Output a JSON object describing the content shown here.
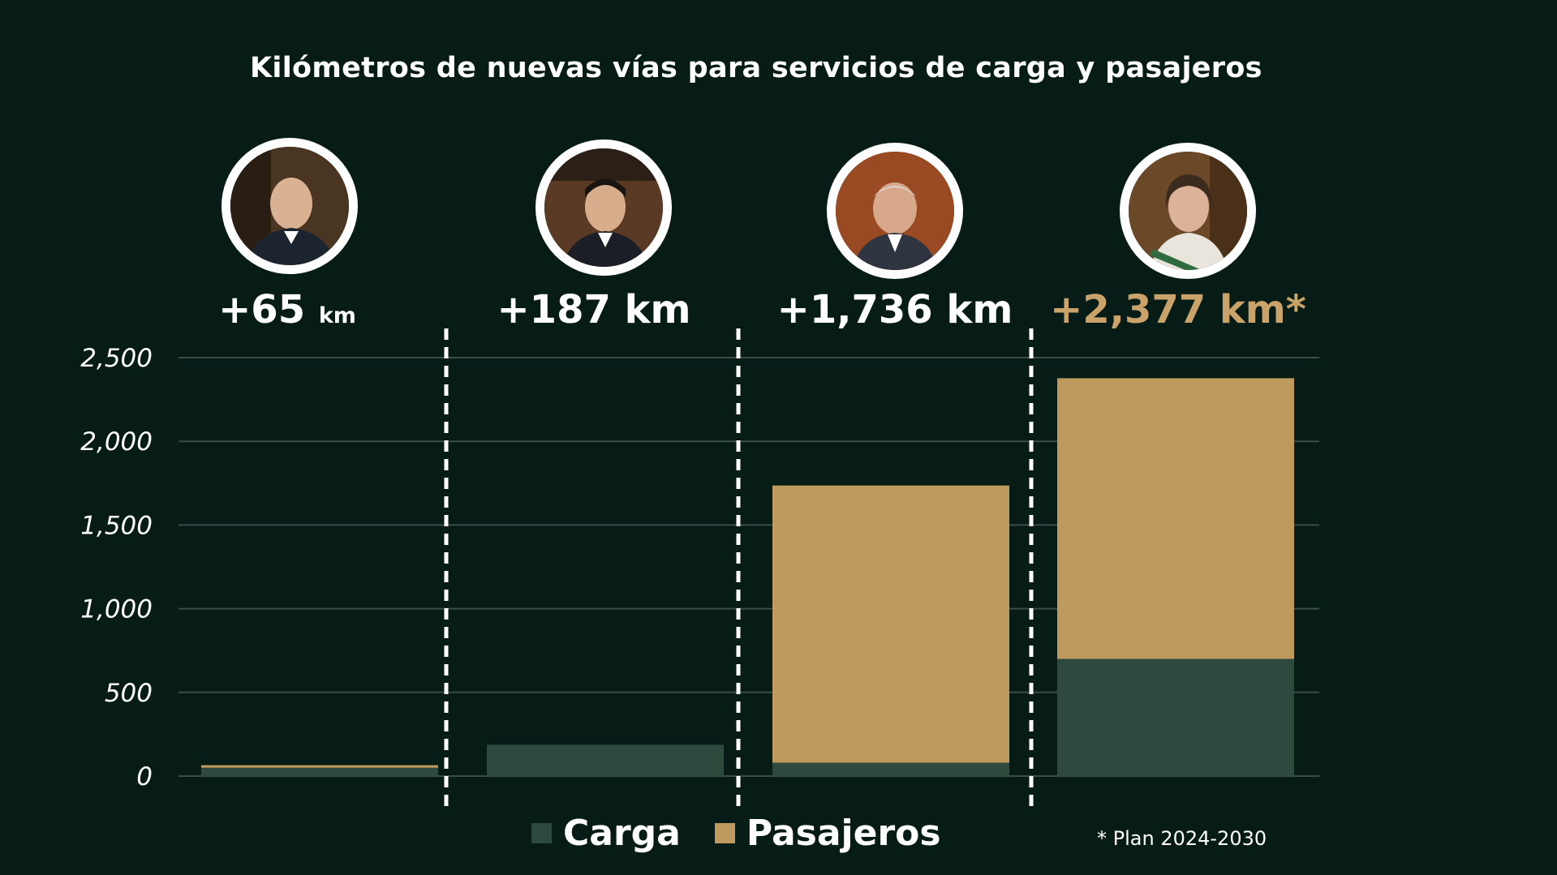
{
  "title": "Kilómetros de nuevas vías para servicios de carga y pasajeros",
  "totals": [
    {
      "value": "+65",
      "unit": "km"
    },
    {
      "value": "+187",
      "unit": "km"
    },
    {
      "value": "+1,736",
      "unit": "km"
    },
    {
      "value": "+2,377",
      "unit": "km*"
    }
  ],
  "legend": {
    "carga": "Carga",
    "pasajeros": "Pasajeros"
  },
  "footnote": "* Plan 2024-2030",
  "colors": {
    "background": "#071c17",
    "carga": "#2e4a3e",
    "pasajeros": "#bf9a5e",
    "gold_text": "#c9a36a",
    "grid": "#3c4d47"
  },
  "chart_data": {
    "type": "bar",
    "stacked": true,
    "categories": [
      "+65 km",
      "+187 km",
      "+1,736 km",
      "+2,377 km*"
    ],
    "series": [
      {
        "name": "Carga",
        "values": [
          50,
          187,
          80,
          700
        ]
      },
      {
        "name": "Pasajeros",
        "values": [
          15,
          0,
          1656,
          1677
        ]
      }
    ],
    "yticks": [
      "0",
      "500",
      "1,000",
      "1,500",
      "2,000",
      "2,500"
    ],
    "ylim": [
      0,
      2500
    ],
    "grid": true,
    "legend_position": "bottom"
  }
}
